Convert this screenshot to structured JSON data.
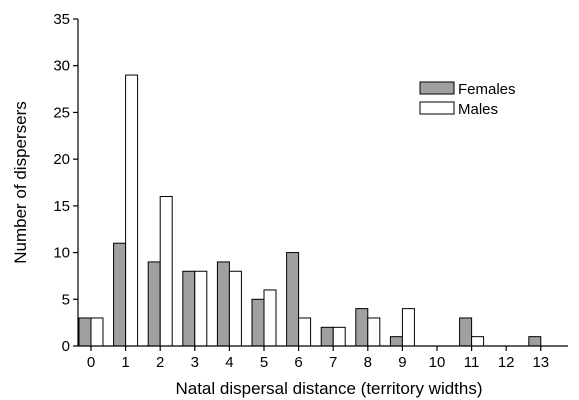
{
  "chart_data": {
    "type": "bar",
    "xlabel": "Natal dispersal distance (territory widths)",
    "ylabel": "Number of dispersers",
    "categories": [
      "0",
      "1",
      "2",
      "3",
      "4",
      "5",
      "6",
      "7",
      "8",
      "9",
      "10",
      "11",
      "12",
      "13"
    ],
    "ylim": [
      0,
      35
    ],
    "yticks": [
      0,
      5,
      10,
      15,
      20,
      25,
      30,
      35
    ],
    "grid": false,
    "legend_position": "top-right",
    "series": [
      {
        "name": "Females",
        "color": "#a0a0a0",
        "values": [
          3,
          11,
          9,
          8,
          9,
          5,
          10,
          2,
          4,
          1,
          0,
          3,
          0,
          1
        ]
      },
      {
        "name": "Males",
        "color": "#ffffff",
        "values": [
          3,
          29,
          16,
          8,
          8,
          6,
          3,
          2,
          3,
          4,
          0,
          1,
          0,
          0
        ]
      }
    ]
  }
}
